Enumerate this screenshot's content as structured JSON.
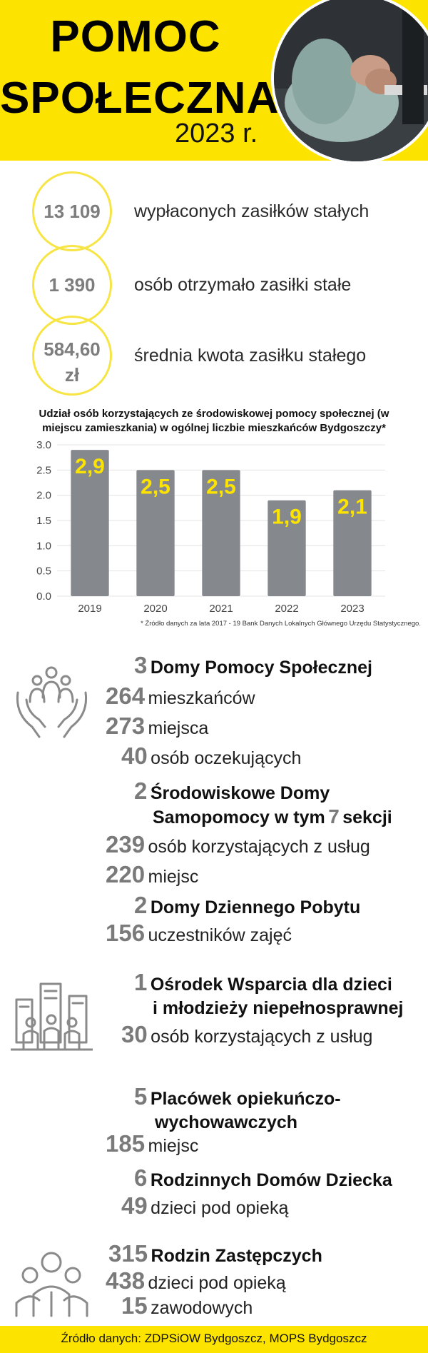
{
  "header": {
    "title_line1": "POMOC",
    "title_line2": "SPOŁECZNA",
    "year": "2023 r."
  },
  "stats": [
    {
      "value": "13 109",
      "label": "wypłaconych zasiłków stałych"
    },
    {
      "value": "1 390",
      "label": "osób otrzymało zasiłki stałe"
    },
    {
      "value_line1": "584,60",
      "value_line2": "zł",
      "label": "średnia kwota zasiłku stałego"
    }
  ],
  "chart_data": {
    "type": "bar",
    "title": "Udział osób korzystających ze środowiskowej pomocy społecznej (w miejscu zamieszkania)  w ogólnej liczbie mieszkańców Bydgoszczy*",
    "title_line1": "Udział osób korzystających ze środowiskowej pomocy społecznej (w",
    "title_line2": "miejscu zamieszkania)  w ogólnej liczbie mieszkańców Bydgoszczy*",
    "categories": [
      "2019",
      "2020",
      "2021",
      "2022",
      "2023"
    ],
    "values": [
      2.9,
      2.5,
      2.5,
      1.9,
      2.1
    ],
    "data_labels": [
      "2,9",
      "2,5",
      "2,5",
      "1,9",
      "2,1"
    ],
    "y_ticks": [
      "0.0",
      "0.5",
      "1.0",
      "1.5",
      "2.0",
      "2.5",
      "3.0"
    ],
    "ylim": [
      0,
      3
    ],
    "grid": true,
    "bar_color": "#85888d",
    "label_color": "#fce300",
    "note": "* Źródło danych za lata 2017 - 19 Bank Danych Lokalnych Głównego Urzędu Statystycznego."
  },
  "section_dps": {
    "num": "3",
    "title": "Domy Pomocy Społecznej",
    "rows": [
      {
        "num": "264",
        "text": "mieszkańców"
      },
      {
        "num": "273",
        "text": "miejsca"
      },
      {
        "num": "40",
        "text": "osób oczekujących"
      }
    ]
  },
  "section_sds": {
    "num": "2",
    "title_line1": "Środowiskowe Domy",
    "title_line2_a": "Samopomocy w tym",
    "title_line2_num": "7",
    "title_line2_b": "sekcji",
    "rows": [
      {
        "num": "239",
        "text": "osób korzystających z usług"
      },
      {
        "num": "220",
        "text": "miejsc"
      }
    ]
  },
  "section_ddp": {
    "num": "2",
    "title": "Domy Dziennego Pobytu",
    "rows": [
      {
        "num": "156",
        "text": "uczestników zajęć"
      }
    ]
  },
  "section_ow": {
    "num": "1",
    "title_line1": "Ośrodek Wsparcia dla dzieci",
    "title_line2": "i młodzieży niepełnosprawnej",
    "rows": [
      {
        "num": "30",
        "text": "osób korzystających z usług"
      }
    ]
  },
  "section_po": {
    "num": "5",
    "title_line1": "Placówek opiekuńczo-",
    "title_line2": "wychowawczych",
    "rows": [
      {
        "num": "185",
        "text": "miejsc"
      }
    ]
  },
  "section_rdd": {
    "num": "6",
    "title": "Rodzinnych Domów Dziecka",
    "rows": [
      {
        "num": "49",
        "text": "dzieci pod opieką"
      }
    ]
  },
  "section_rz": {
    "num": "315",
    "title": "Rodzin Zastępczych",
    "rows": [
      {
        "num": "438",
        "text": "dzieci pod opieką"
      },
      {
        "num": "15",
        "text": "zawodowych"
      }
    ]
  },
  "footer": {
    "text": "Źródło danych: ZDPSiOW Bydgoszcz, MOPS Bydgoszcz"
  },
  "icons": [
    "care-hands-people-icon",
    "city-family-icon",
    "family-group-icon"
  ],
  "colors": {
    "accent": "#fce300",
    "number_gray": "#7a7a7a",
    "bar_gray": "#85888d"
  }
}
